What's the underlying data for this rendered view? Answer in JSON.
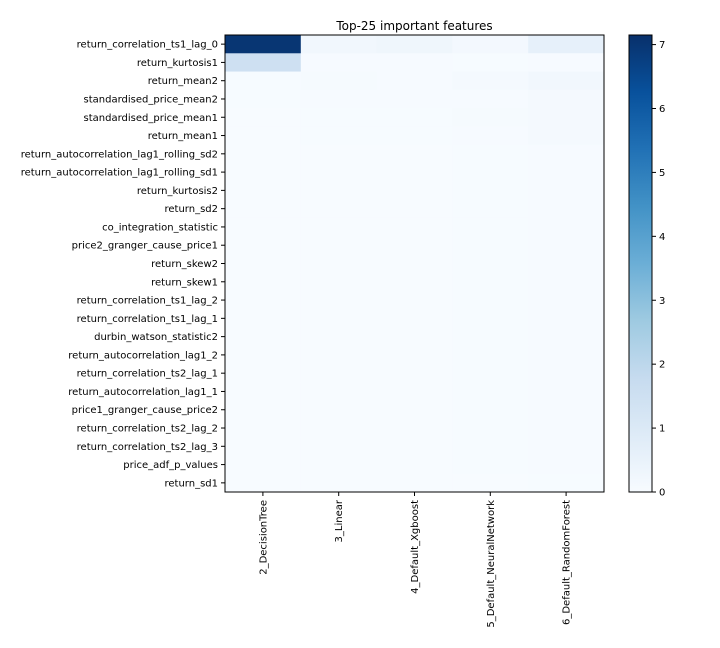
{
  "chart_data": {
    "type": "heatmap",
    "title": "Top-25 important features",
    "xlabel": "",
    "ylabel": "",
    "rows": [
      "return_correlation_ts1_lag_0",
      "return_kurtosis1",
      "return_mean2",
      "standardised_price_mean2",
      "standardised_price_mean1",
      "return_mean1",
      "return_autocorrelation_lag1_rolling_sd2",
      "return_autocorrelation_lag1_rolling_sd1",
      "return_kurtosis2",
      "return_sd2",
      "co_integration_statistic",
      "price2_granger_cause_price1",
      "return_skew2",
      "return_skew1",
      "return_correlation_ts1_lag_2",
      "return_correlation_ts1_lag_1",
      "durbin_watson_statistic2",
      "return_autocorrelation_lag1_2",
      "return_correlation_ts2_lag_1",
      "return_autocorrelation_lag1_1",
      "price1_granger_cause_price2",
      "return_correlation_ts2_lag_2",
      "return_correlation_ts2_lag_3",
      "price_adf_p_values",
      "return_sd1"
    ],
    "columns": [
      "2_DecisionTree",
      "3_Linear",
      "4_Default_Xgboost",
      "5_Default_NeuralNetwork",
      "6_Default_RandomForest"
    ],
    "values": [
      [
        7.0,
        0.2,
        0.3,
        0.15,
        0.6
      ],
      [
        1.5,
        0.03,
        0.03,
        0.02,
        0.05
      ],
      [
        0.02,
        0.08,
        0.05,
        0.1,
        0.2
      ],
      [
        0.02,
        0.03,
        0.03,
        0.05,
        0.1
      ],
      [
        0.01,
        0.02,
        0.02,
        0.08,
        0.1
      ],
      [
        0.01,
        0.02,
        0.02,
        0.03,
        0.12
      ],
      [
        0.01,
        0.01,
        0.01,
        0.02,
        0.05
      ],
      [
        0.01,
        0.01,
        0.01,
        0.02,
        0.05
      ],
      [
        0.01,
        0.01,
        0.01,
        0.02,
        0.05
      ],
      [
        0.01,
        0.01,
        0.01,
        0.02,
        0.05
      ],
      [
        0.01,
        0.01,
        0.01,
        0.02,
        0.04
      ],
      [
        0.01,
        0.01,
        0.01,
        0.02,
        0.04
      ],
      [
        0.01,
        0.01,
        0.01,
        0.02,
        0.04
      ],
      [
        0.01,
        0.01,
        0.01,
        0.02,
        0.04
      ],
      [
        0.01,
        0.01,
        0.01,
        0.02,
        0.04
      ],
      [
        0.01,
        0.01,
        0.01,
        0.02,
        0.04
      ],
      [
        0.01,
        0.01,
        0.01,
        0.02,
        0.03
      ],
      [
        0.01,
        0.01,
        0.01,
        0.02,
        0.03
      ],
      [
        0.01,
        0.01,
        0.01,
        0.02,
        0.03
      ],
      [
        0.01,
        0.01,
        0.01,
        0.02,
        0.03
      ],
      [
        0.01,
        0.01,
        0.01,
        0.02,
        0.03
      ],
      [
        0.01,
        0.01,
        0.01,
        0.02,
        0.03
      ],
      [
        0.01,
        0.01,
        0.01,
        0.02,
        0.03
      ],
      [
        0.01,
        0.01,
        0.01,
        0.02,
        0.03
      ],
      [
        0.01,
        0.01,
        0.01,
        0.01,
        0.02
      ]
    ],
    "colorbar": {
      "min": 0,
      "max": 7.15,
      "ticks": [
        0,
        1,
        2,
        3,
        4,
        5,
        6,
        7
      ],
      "colormap": "Blues"
    },
    "grid": false
  }
}
